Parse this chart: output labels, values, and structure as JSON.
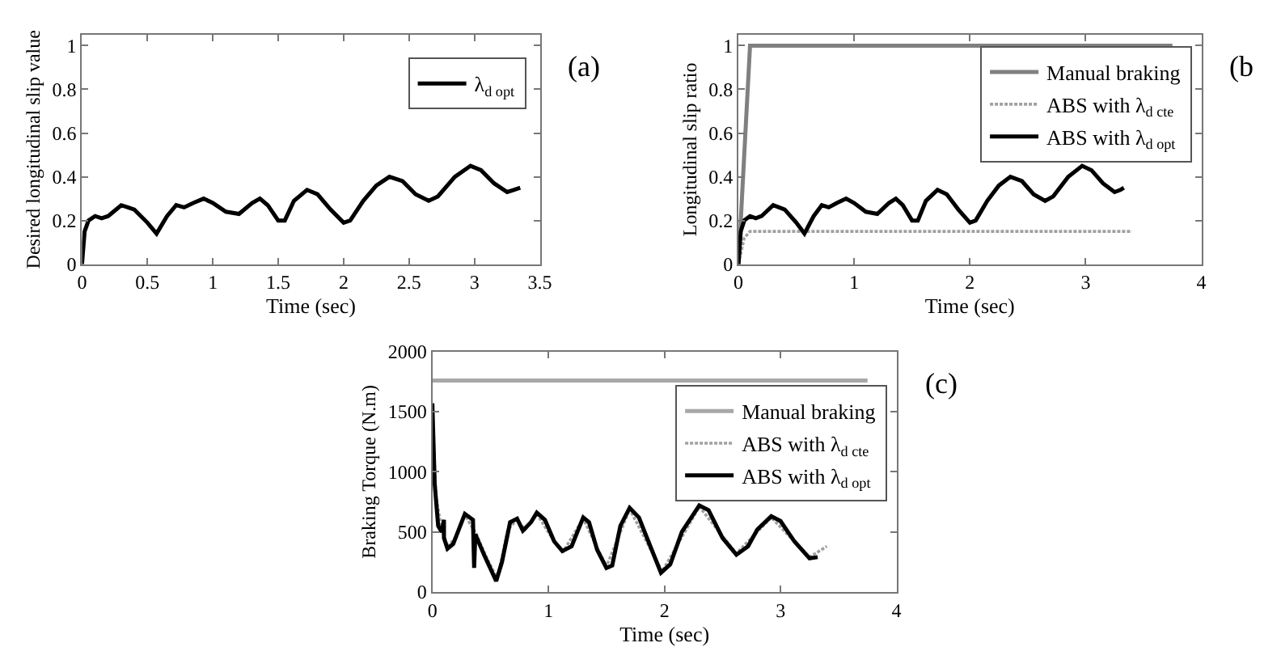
{
  "chart_data": [
    {
      "type": "line",
      "xlabel": "Time (sec)",
      "ylabel": "Desired longitudinal slip value",
      "xlim": [
        0,
        3.5
      ],
      "ylim": [
        0,
        1.05
      ],
      "xticks": [
        0,
        0.5,
        1,
        1.5,
        2,
        2.5,
        3,
        3.5
      ],
      "yticks": [
        0,
        0.2,
        0.4,
        0.6,
        0.8,
        1
      ],
      "legend": "top right",
      "annotations": [
        "(a)"
      ],
      "series": [
        {
          "name": "λ$_{d opt}$",
          "color": "#000000",
          "line_style": "solid",
          "x": [
            0,
            0.02,
            0.05,
            0.1,
            0.15,
            0.2,
            0.3,
            0.35,
            0.4,
            0.5,
            0.57,
            0.65,
            0.72,
            0.78,
            0.85,
            0.93,
            1.0,
            1.1,
            1.2,
            1.3,
            1.36,
            1.42,
            1.5,
            1.55,
            1.62,
            1.72,
            1.8,
            1.9,
            2.0,
            2.05,
            2.15,
            2.25,
            2.35,
            2.45,
            2.55,
            2.65,
            2.72,
            2.85,
            2.97,
            3.05,
            3.15,
            3.25,
            3.3,
            3.35
          ],
          "values": [
            0,
            0.15,
            0.2,
            0.22,
            0.21,
            0.22,
            0.27,
            0.26,
            0.25,
            0.19,
            0.14,
            0.22,
            0.27,
            0.26,
            0.28,
            0.3,
            0.28,
            0.24,
            0.23,
            0.28,
            0.3,
            0.27,
            0.2,
            0.2,
            0.29,
            0.34,
            0.32,
            0.25,
            0.19,
            0.2,
            0.29,
            0.36,
            0.4,
            0.38,
            0.32,
            0.29,
            0.31,
            0.4,
            0.45,
            0.43,
            0.37,
            0.33,
            0.34,
            0.35
          ]
        }
      ]
    },
    {
      "type": "line",
      "xlabel": "Time (sec)",
      "ylabel": "Longitudinal slip ratio",
      "xlim": [
        0,
        4
      ],
      "ylim": [
        0,
        1.05
      ],
      "xticks": [
        0,
        1,
        2,
        3,
        4
      ],
      "yticks": [
        0,
        0.2,
        0.4,
        0.6,
        0.8,
        1
      ],
      "legend": "top right",
      "annotations": [
        "(b"
      ],
      "series": [
        {
          "name": "Manual braking",
          "color": "#808080",
          "line_style": "solid",
          "x": [
            0,
            0.1,
            3.75
          ],
          "values": [
            0,
            1,
            1
          ]
        },
        {
          "name": "ABS with λ$_{d cte}$",
          "color": "#a0a0a0",
          "line_style": "dotted",
          "x": [
            0,
            0.05,
            0.1,
            3.4
          ],
          "values": [
            0,
            0.12,
            0.15,
            0.15
          ]
        },
        {
          "name": "ABS with λ$_{d opt}$",
          "color": "#000000",
          "line_style": "solid",
          "x": [
            0,
            0.02,
            0.05,
            0.1,
            0.15,
            0.2,
            0.3,
            0.35,
            0.4,
            0.5,
            0.57,
            0.65,
            0.72,
            0.78,
            0.85,
            0.93,
            1.0,
            1.1,
            1.2,
            1.3,
            1.36,
            1.42,
            1.5,
            1.55,
            1.62,
            1.72,
            1.8,
            1.9,
            2.0,
            2.05,
            2.15,
            2.25,
            2.35,
            2.45,
            2.55,
            2.65,
            2.72,
            2.85,
            2.97,
            3.05,
            3.15,
            3.25,
            3.3,
            3.33
          ],
          "values": [
            0,
            0.15,
            0.2,
            0.22,
            0.21,
            0.22,
            0.27,
            0.26,
            0.25,
            0.19,
            0.14,
            0.22,
            0.27,
            0.26,
            0.28,
            0.3,
            0.28,
            0.24,
            0.23,
            0.28,
            0.3,
            0.27,
            0.2,
            0.2,
            0.29,
            0.34,
            0.32,
            0.25,
            0.19,
            0.2,
            0.29,
            0.36,
            0.4,
            0.38,
            0.32,
            0.29,
            0.31,
            0.4,
            0.45,
            0.43,
            0.37,
            0.33,
            0.34,
            0.35
          ]
        }
      ]
    },
    {
      "type": "line",
      "xlabel": "Time (sec)",
      "ylabel": "Braking Torque (N.m)",
      "xlim": [
        0,
        4
      ],
      "ylim": [
        0,
        2000
      ],
      "xticks": [
        0,
        1,
        2,
        3,
        4
      ],
      "yticks": [
        0,
        500,
        1000,
        1500,
        2000
      ],
      "legend": "top right",
      "annotations": [
        "(c)"
      ],
      "series": [
        {
          "name": "Manual braking",
          "color": "#a8a8a8",
          "line_style": "solid",
          "x": [
            0,
            3.75
          ],
          "values": [
            1760,
            1760
          ]
        },
        {
          "name": "ABS with λ$_{d cte}$",
          "color": "#a0a0a0",
          "line_style": "dotted",
          "x": [
            0,
            0.03,
            0.08,
            0.13,
            0.2,
            0.28,
            0.38,
            0.47,
            0.56,
            0.65,
            0.73,
            0.8,
            0.9,
            1.05,
            1.13,
            1.3,
            1.5,
            1.7,
            1.98,
            2.3,
            2.62,
            2.92,
            3.25,
            3.4
          ],
          "values": [
            1500,
            800,
            520,
            380,
            450,
            640,
            480,
            280,
            110,
            520,
            600,
            520,
            650,
            420,
            340,
            610,
            210,
            690,
            170,
            710,
            320,
            620,
            290,
            380
          ]
        },
        {
          "name": "ABS with λ$_{d opt}$",
          "color": "#000000",
          "line_style": "solid",
          "x": [
            0,
            0.02,
            0.05,
            0.08,
            0.1,
            0.1,
            0.13,
            0.18,
            0.28,
            0.35,
            0.36,
            0.37,
            0.45,
            0.55,
            0.6,
            0.67,
            0.73,
            0.78,
            0.85,
            0.9,
            0.97,
            1.05,
            1.12,
            1.2,
            1.3,
            1.35,
            1.42,
            1.5,
            1.55,
            1.62,
            1.7,
            1.78,
            1.87,
            1.97,
            2.05,
            2.15,
            2.3,
            2.38,
            2.5,
            2.62,
            2.72,
            2.8,
            2.92,
            3.0,
            3.12,
            3.25,
            3.32
          ],
          "values": [
            1570,
            900,
            550,
            500,
            600,
            450,
            360,
            400,
            650,
            600,
            200,
            480,
            300,
            90,
            250,
            580,
            610,
            510,
            580,
            660,
            600,
            420,
            340,
            380,
            620,
            580,
            350,
            200,
            220,
            550,
            700,
            620,
            400,
            160,
            230,
            500,
            720,
            680,
            450,
            310,
            380,
            520,
            630,
            590,
            420,
            280,
            290
          ]
        }
      ]
    }
  ]
}
